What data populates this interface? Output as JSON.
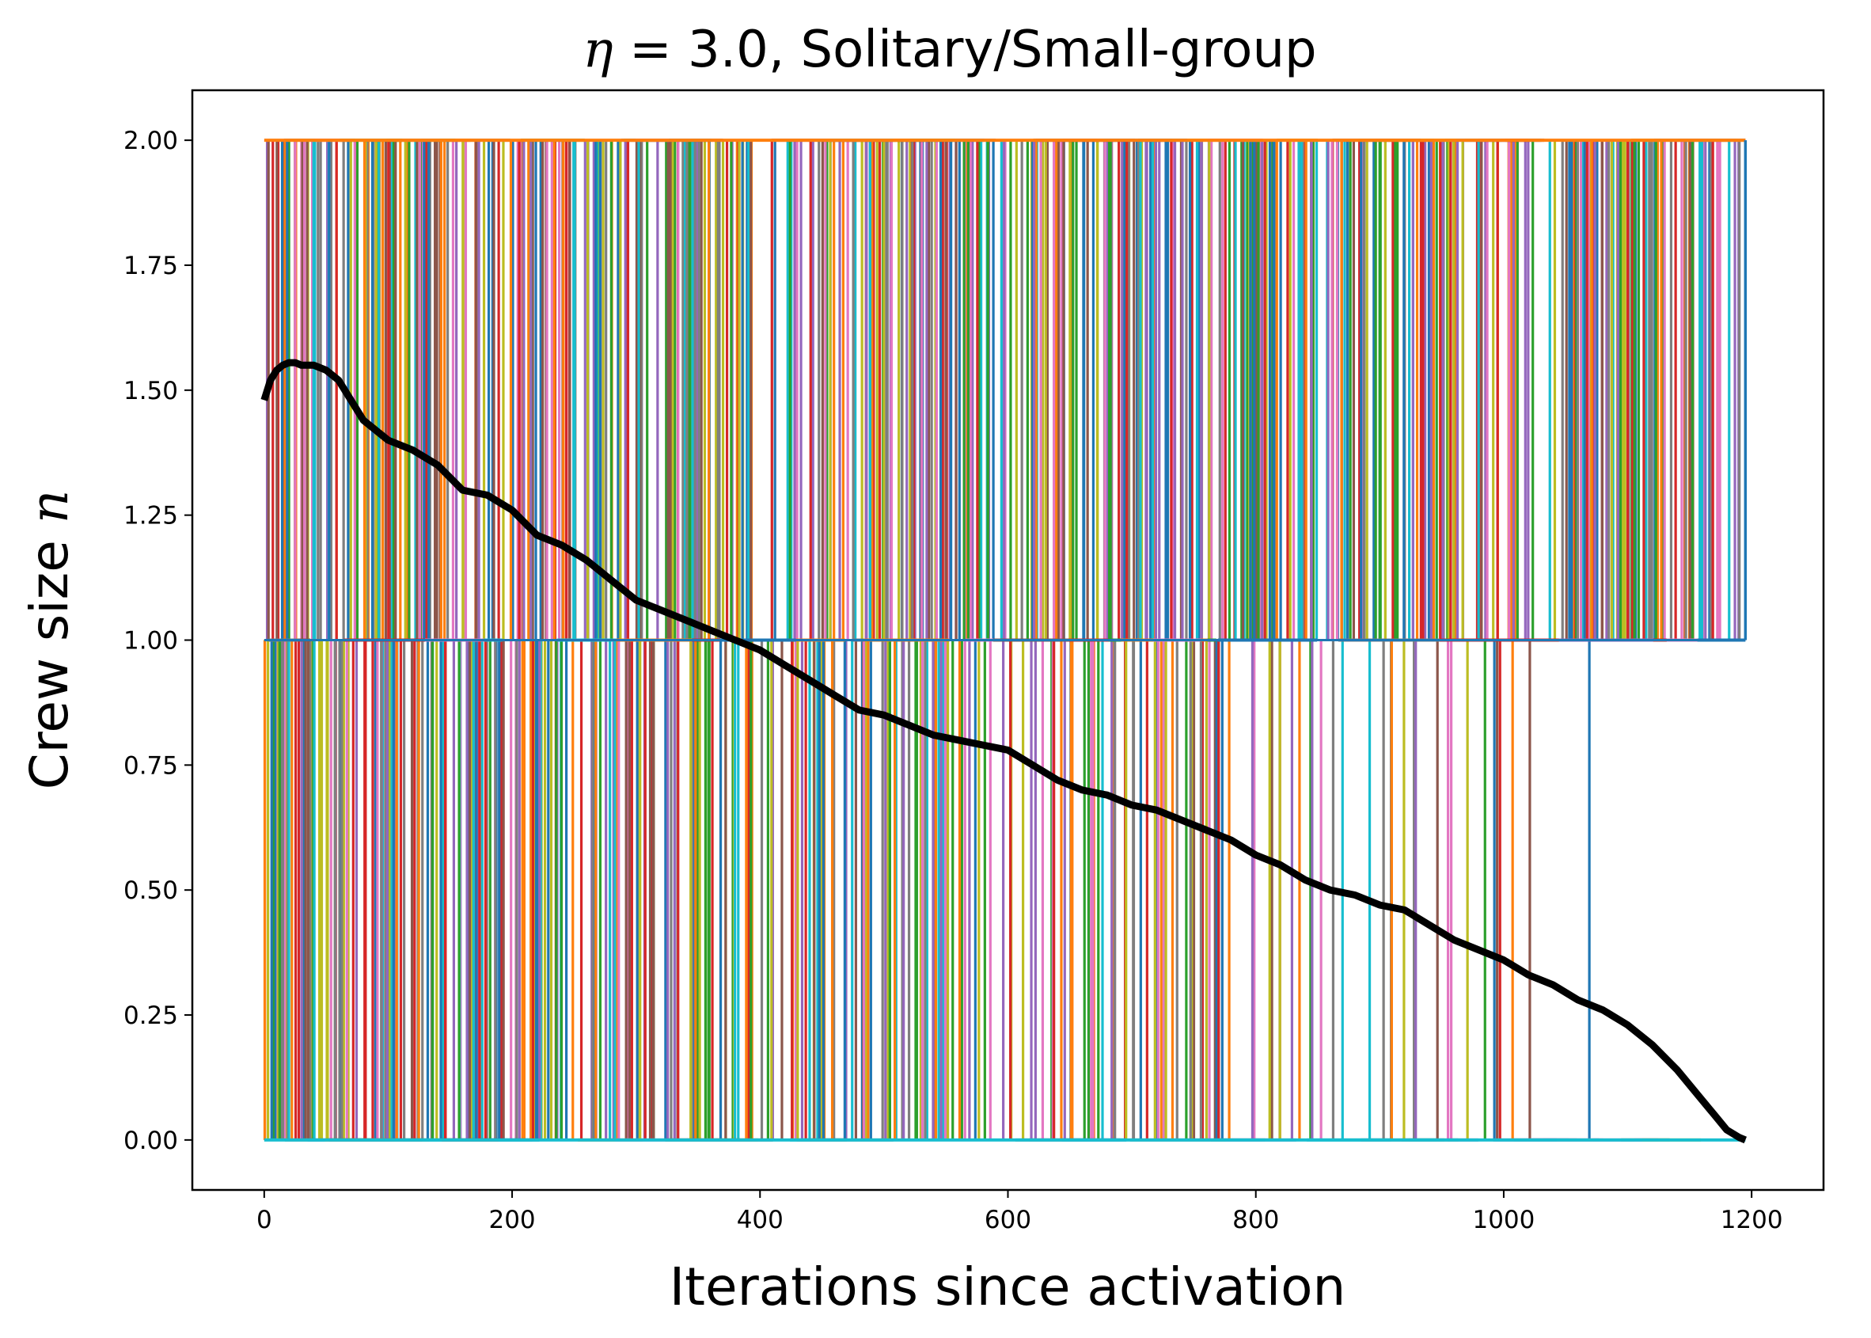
{
  "chart_data": {
    "type": "line",
    "title": {
      "symbol": "η",
      "eq": " = ",
      "value": "3.0",
      "rest": ", Solitary/Small-group"
    },
    "xlabel": "Iterations since activation",
    "ylabel": {
      "text": "Crew size ",
      "symbol": "n"
    },
    "xlim": [
      -58,
      1258
    ],
    "ylim": [
      -0.1,
      2.1
    ],
    "xticks": [
      {
        "value": 0,
        "label": "0"
      },
      {
        "value": 200,
        "label": "200"
      },
      {
        "value": 400,
        "label": "400"
      },
      {
        "value": 600,
        "label": "600"
      },
      {
        "value": 800,
        "label": "800"
      },
      {
        "value": 1000,
        "label": "1000"
      },
      {
        "value": 1200,
        "label": "1200"
      }
    ],
    "yticks": [
      {
        "value": 0.0,
        "label": "0.00"
      },
      {
        "value": 0.25,
        "label": "0.25"
      },
      {
        "value": 0.5,
        "label": "0.50"
      },
      {
        "value": 0.75,
        "label": "0.75"
      },
      {
        "value": 1.0,
        "label": "1.00"
      },
      {
        "value": 1.25,
        "label": "1.25"
      },
      {
        "value": 1.5,
        "label": "1.50"
      },
      {
        "value": 1.75,
        "label": "1.75"
      },
      {
        "value": 2.0,
        "label": "2.00"
      }
    ],
    "grid": false,
    "individual_series_colors": [
      "#1f77b4",
      "#ff7f0e",
      "#2ca02c",
      "#d62728",
      "#9467bd",
      "#8c564b",
      "#e377c2",
      "#7f7f7f",
      "#bcbd22",
      "#17becf"
    ],
    "individual_series_description": "many step trajectories switching between crew sizes 0, 1 and 2; transitions 2↔1 occur up to ~1195 iterations, 1→0 drops up to ~1140 iterations",
    "mean_series": {
      "color": "#000000",
      "x": [
        0,
        5,
        10,
        15,
        20,
        25,
        30,
        40,
        50,
        60,
        80,
        100,
        120,
        140,
        160,
        180,
        200,
        220,
        240,
        260,
        280,
        300,
        320,
        340,
        360,
        380,
        400,
        420,
        440,
        460,
        480,
        500,
        520,
        540,
        560,
        580,
        600,
        620,
        640,
        660,
        680,
        700,
        720,
        740,
        760,
        780,
        800,
        820,
        840,
        860,
        880,
        900,
        920,
        940,
        960,
        980,
        1000,
        1020,
        1040,
        1060,
        1080,
        1100,
        1120,
        1140,
        1160,
        1170,
        1180,
        1190,
        1195
      ],
      "y": [
        1.48,
        1.52,
        1.54,
        1.55,
        1.555,
        1.555,
        1.55,
        1.55,
        1.54,
        1.52,
        1.44,
        1.4,
        1.38,
        1.35,
        1.3,
        1.29,
        1.26,
        1.21,
        1.19,
        1.16,
        1.12,
        1.08,
        1.06,
        1.04,
        1.02,
        1.0,
        0.98,
        0.95,
        0.92,
        0.89,
        0.86,
        0.85,
        0.83,
        0.81,
        0.8,
        0.79,
        0.78,
        0.75,
        0.72,
        0.7,
        0.69,
        0.67,
        0.66,
        0.64,
        0.62,
        0.6,
        0.57,
        0.55,
        0.52,
        0.5,
        0.49,
        0.47,
        0.46,
        0.43,
        0.4,
        0.38,
        0.36,
        0.33,
        0.31,
        0.28,
        0.26,
        0.23,
        0.19,
        0.14,
        0.08,
        0.05,
        0.02,
        0.005,
        0.0
      ]
    }
  }
}
